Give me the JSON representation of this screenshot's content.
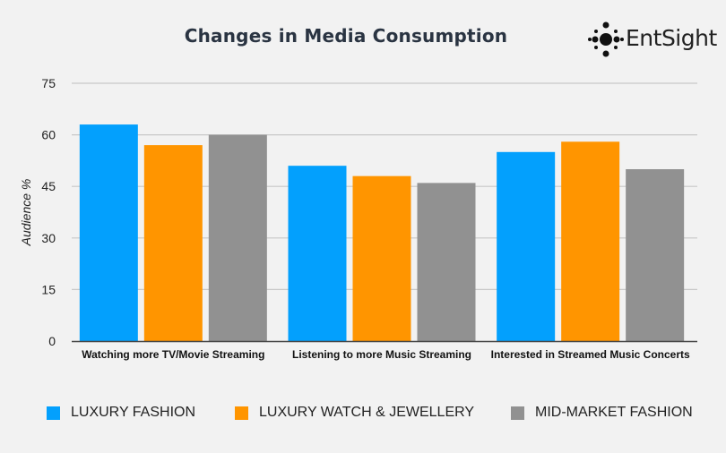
{
  "logo": {
    "text": "EntSight",
    "icon": "dot-cluster-icon"
  },
  "chart_data": {
    "type": "bar",
    "title": "Changes in Media Consumption",
    "xlabel": "",
    "ylabel": "Audience %",
    "ylim": [
      0,
      75
    ],
    "yticks": [
      0,
      15,
      30,
      45,
      60,
      75
    ],
    "grid": true,
    "legend_position": "bottom",
    "categories": [
      "Watching more TV/Movie Streaming",
      "Listening to more Music Streaming",
      "Interested in Streamed Music Concerts"
    ],
    "series": [
      {
        "name": "LUXURY FASHION",
        "color": "#03a0fd",
        "values": [
          63,
          51,
          55
        ]
      },
      {
        "name": "LUXURY WATCH & JEWELLERY",
        "color": "#ff9500",
        "values": [
          57,
          48,
          58
        ]
      },
      {
        "name": "MID-MARKET FASHION",
        "color": "#919191",
        "values": [
          60,
          46,
          50
        ]
      }
    ]
  }
}
